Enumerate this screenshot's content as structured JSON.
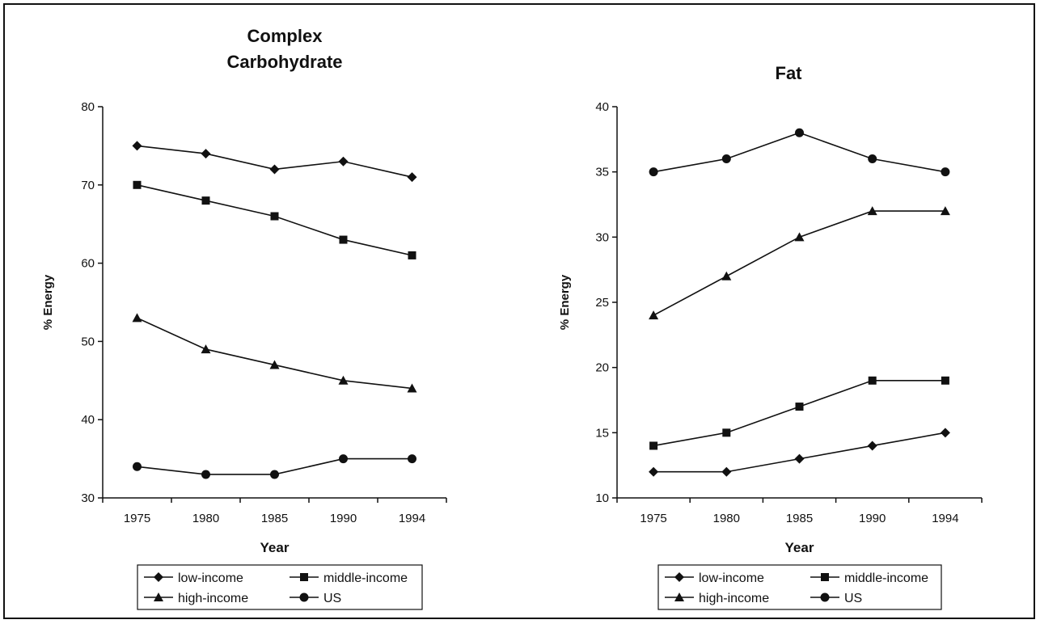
{
  "chart_data": [
    {
      "type": "line",
      "title": "Complex Carbohydrate",
      "title_lines": [
        "Complex",
        "Carbohydrate"
      ],
      "xlabel": "Year",
      "ylabel": "% Energy",
      "categories": [
        "1975",
        "1980",
        "1985",
        "1990",
        "1994"
      ],
      "ylim": [
        30,
        80
      ],
      "yticks": [
        30,
        40,
        50,
        60,
        70,
        80
      ],
      "grid": false,
      "legend_position": "bottom",
      "series": [
        {
          "name": "low-income",
          "marker": "diamond",
          "values": [
            75,
            74,
            72,
            73,
            71
          ]
        },
        {
          "name": "middle-income",
          "marker": "square",
          "values": [
            70,
            68,
            66,
            63,
            61
          ]
        },
        {
          "name": "high-income",
          "marker": "triangle",
          "values": [
            53,
            49,
            47,
            45,
            44
          ]
        },
        {
          "name": "US",
          "marker": "circle",
          "values": [
            34,
            33,
            33,
            35,
            35
          ]
        }
      ]
    },
    {
      "type": "line",
      "title": "Fat",
      "title_lines": [
        "Fat"
      ],
      "xlabel": "Year",
      "ylabel": "% Energy",
      "categories": [
        "1975",
        "1980",
        "1985",
        "1990",
        "1994"
      ],
      "ylim": [
        10,
        40
      ],
      "yticks": [
        10,
        15,
        20,
        25,
        30,
        35,
        40
      ],
      "grid": false,
      "legend_position": "bottom",
      "series": [
        {
          "name": "low-income",
          "marker": "diamond",
          "values": [
            12,
            12,
            13,
            14,
            15
          ]
        },
        {
          "name": "middle-income",
          "marker": "square",
          "values": [
            14,
            15,
            17,
            19,
            19
          ]
        },
        {
          "name": "high-income",
          "marker": "triangle",
          "values": [
            24,
            27,
            30,
            32,
            32
          ]
        },
        {
          "name": "US",
          "marker": "circle",
          "values": [
            35,
            36,
            38,
            36,
            35
          ]
        }
      ]
    }
  ]
}
